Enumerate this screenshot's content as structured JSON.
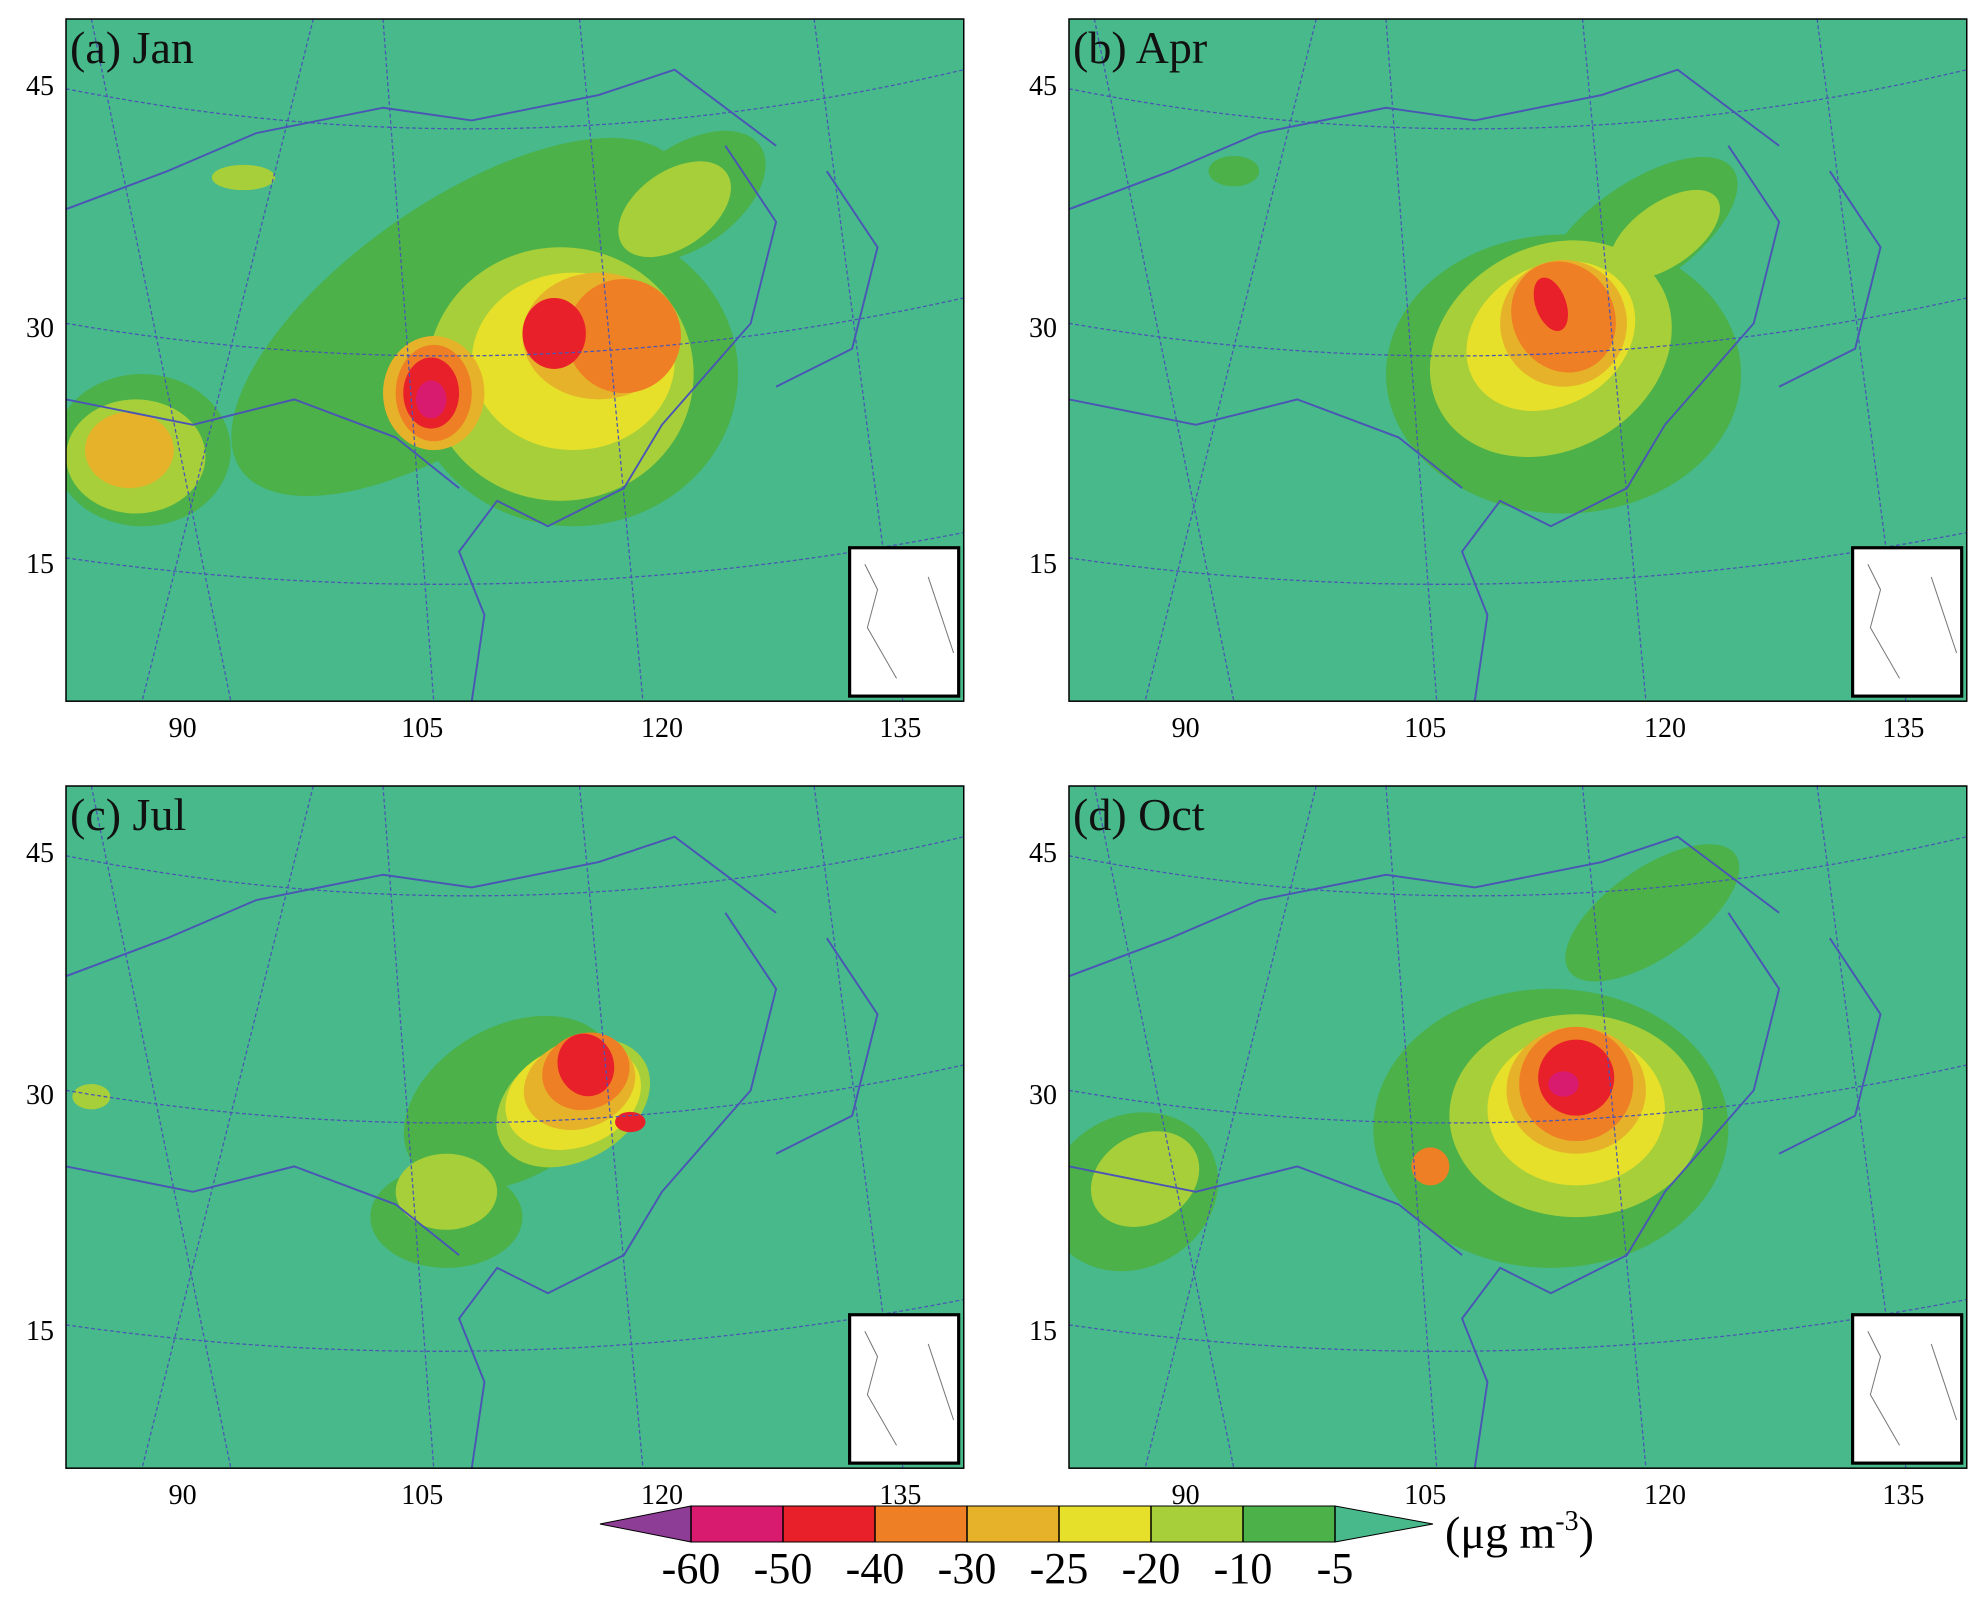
{
  "panels": [
    {
      "label": "(a) Jan"
    },
    {
      "label": "(b) Apr"
    },
    {
      "label": "(c) Jul"
    },
    {
      "label": "(d) Oct"
    }
  ],
  "map": {
    "lat_labels": [
      "45",
      "30",
      "15"
    ],
    "lon_labels": [
      "90",
      "105",
      "120",
      "135"
    ],
    "background": "#47b98a",
    "line_color": "#4a55b5"
  },
  "colorbar": {
    "levels": [
      -60,
      -50,
      -40,
      -30,
      -25,
      -20,
      -10,
      -5
    ],
    "colors": [
      "#8e3d96",
      "#d81b6f",
      "#e8202a",
      "#ef7f25",
      "#e6b22a",
      "#e6e02a",
      "#a6cf3a",
      "#4bb148",
      "#47b98a"
    ],
    "unit": {
      "base": "(μg m",
      "exponent": "-3",
      "close": ")"
    }
  }
}
